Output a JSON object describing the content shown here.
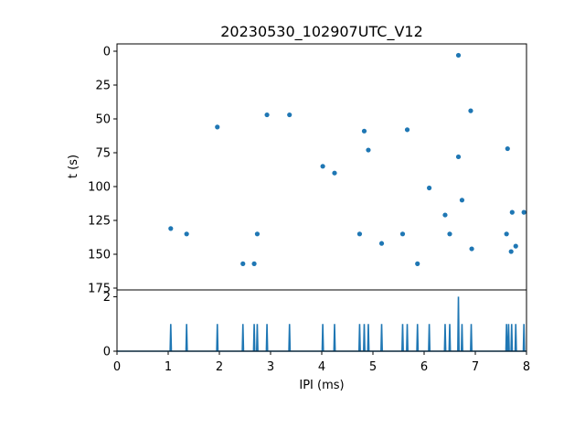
{
  "chart_data": [
    {
      "type": "scatter",
      "title": "20230530_102907UTC_V12",
      "xlabel": "",
      "ylabel": "t (s)",
      "xlim": [
        0,
        8
      ],
      "ylim": [
        175,
        0
      ],
      "y_inverted": true,
      "yticks": [
        "0",
        "25",
        "50",
        "75",
        "100",
        "125",
        "150",
        "175"
      ],
      "color": "#1f77b4",
      "points": [
        {
          "x": 1.05,
          "y": 131
        },
        {
          "x": 1.36,
          "y": 135
        },
        {
          "x": 1.96,
          "y": 56
        },
        {
          "x": 2.46,
          "y": 157
        },
        {
          "x": 2.68,
          "y": 157
        },
        {
          "x": 2.74,
          "y": 135
        },
        {
          "x": 2.93,
          "y": 47
        },
        {
          "x": 3.37,
          "y": 47
        },
        {
          "x": 4.02,
          "y": 85
        },
        {
          "x": 4.25,
          "y": 90
        },
        {
          "x": 4.74,
          "y": 135
        },
        {
          "x": 4.83,
          "y": 59
        },
        {
          "x": 4.91,
          "y": 73
        },
        {
          "x": 5.17,
          "y": 142
        },
        {
          "x": 5.58,
          "y": 135
        },
        {
          "x": 5.67,
          "y": 58
        },
        {
          "x": 5.87,
          "y": 157
        },
        {
          "x": 6.1,
          "y": 101
        },
        {
          "x": 6.41,
          "y": 121
        },
        {
          "x": 6.5,
          "y": 135
        },
        {
          "x": 6.67,
          "y": 3
        },
        {
          "x": 6.67,
          "y": 78
        },
        {
          "x": 6.74,
          "y": 110
        },
        {
          "x": 6.91,
          "y": 44
        },
        {
          "x": 6.93,
          "y": 146
        },
        {
          "x": 7.61,
          "y": 135
        },
        {
          "x": 7.63,
          "y": 72
        },
        {
          "x": 7.7,
          "y": 148
        },
        {
          "x": 7.72,
          "y": 119
        },
        {
          "x": 7.79,
          "y": 144
        },
        {
          "x": 7.95,
          "y": 119
        }
      ]
    },
    {
      "type": "line",
      "title": "",
      "xlabel": "IPI (ms)",
      "ylabel": "",
      "xlim": [
        0,
        8
      ],
      "ylim": [
        0,
        2.25
      ],
      "xticks": [
        "0",
        "1",
        "2",
        "3",
        "4",
        "5",
        "6",
        "7",
        "8"
      ],
      "yticks": [
        "0",
        "2"
      ],
      "color": "#1f77b4",
      "series": [
        {
          "values": [
            {
              "x": 1.05,
              "y": 1
            },
            {
              "x": 1.36,
              "y": 1
            },
            {
              "x": 1.96,
              "y": 1
            },
            {
              "x": 2.46,
              "y": 1
            },
            {
              "x": 2.68,
              "y": 1
            },
            {
              "x": 2.74,
              "y": 1
            },
            {
              "x": 2.93,
              "y": 1
            },
            {
              "x": 3.37,
              "y": 1
            },
            {
              "x": 4.02,
              "y": 1
            },
            {
              "x": 4.25,
              "y": 1
            },
            {
              "x": 4.74,
              "y": 1
            },
            {
              "x": 4.83,
              "y": 1
            },
            {
              "x": 4.91,
              "y": 1
            },
            {
              "x": 5.17,
              "y": 1
            },
            {
              "x": 5.58,
              "y": 1
            },
            {
              "x": 5.67,
              "y": 1
            },
            {
              "x": 5.87,
              "y": 1
            },
            {
              "x": 6.1,
              "y": 1
            },
            {
              "x": 6.41,
              "y": 1
            },
            {
              "x": 6.5,
              "y": 1
            },
            {
              "x": 6.67,
              "y": 2
            },
            {
              "x": 6.74,
              "y": 1
            },
            {
              "x": 6.92,
              "y": 1
            },
            {
              "x": 7.61,
              "y": 1
            },
            {
              "x": 7.65,
              "y": 1
            },
            {
              "x": 7.71,
              "y": 1
            },
            {
              "x": 7.79,
              "y": 1
            },
            {
              "x": 7.95,
              "y": 1
            }
          ]
        }
      ]
    }
  ]
}
